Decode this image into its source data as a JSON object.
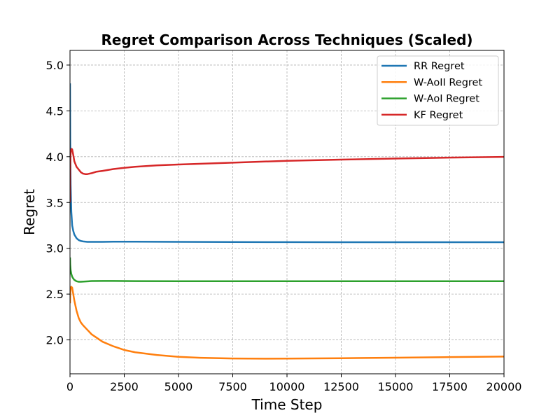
{
  "chart_data": {
    "type": "line",
    "title": "Regret Comparison Across Techniques (Scaled)",
    "xlabel": "Time Step",
    "ylabel": "Regret",
    "xlim": [
      0,
      20000
    ],
    "ylim": [
      1.63,
      5.16
    ],
    "xticks": [
      0,
      2500,
      5000,
      7500,
      10000,
      12500,
      15000,
      17500,
      20000
    ],
    "xtick_labels": [
      "0",
      "2500",
      "5000",
      "7500",
      "10000",
      "12500",
      "15000",
      "17500",
      "20000"
    ],
    "yticks": [
      2.0,
      2.5,
      3.0,
      3.5,
      4.0,
      4.5,
      5.0
    ],
    "ytick_labels": [
      "2.0",
      "2.5",
      "3.0",
      "3.5",
      "4.0",
      "4.5",
      "5.0"
    ],
    "grid": true,
    "legend_position": "top-right",
    "series": [
      {
        "name": "RR Regret",
        "color": "#1f77b4",
        "x": [
          1,
          10,
          30,
          60,
          100,
          150,
          200,
          300,
          400,
          500,
          600,
          800,
          1000,
          1500,
          2000,
          3000,
          5000,
          7500,
          10000,
          12500,
          15000,
          17500,
          20000
        ],
        "y": [
          4.8,
          4.2,
          3.7,
          3.4,
          3.25,
          3.19,
          3.15,
          3.11,
          3.09,
          3.08,
          3.075,
          3.07,
          3.07,
          3.07,
          3.072,
          3.072,
          3.07,
          3.068,
          3.067,
          3.066,
          3.066,
          3.066,
          3.066
        ]
      },
      {
        "name": "W-AoII Regret",
        "color": "#ff7f0e",
        "x": [
          1,
          10,
          30,
          60,
          100,
          150,
          200,
          300,
          400,
          500,
          600,
          800,
          1000,
          1250,
          1500,
          2000,
          2500,
          3000,
          4000,
          5000,
          6000,
          7500,
          9000,
          10000,
          12500,
          15000,
          17500,
          20000
        ],
        "y": [
          2.4,
          2.5,
          2.56,
          2.58,
          2.57,
          2.5,
          2.43,
          2.32,
          2.24,
          2.19,
          2.16,
          2.11,
          2.06,
          2.02,
          1.98,
          1.93,
          1.89,
          1.865,
          1.835,
          1.815,
          1.805,
          1.797,
          1.795,
          1.796,
          1.8,
          1.806,
          1.812,
          1.818
        ]
      },
      {
        "name": "W-AoI Regret",
        "color": "#2ca02c",
        "x": [
          1,
          10,
          30,
          60,
          100,
          150,
          200,
          300,
          400,
          500,
          700,
          1000,
          1500,
          2000,
          3000,
          5000,
          7500,
          10000,
          12500,
          15000,
          17500,
          20000
        ],
        "y": [
          2.9,
          2.82,
          2.76,
          2.72,
          2.69,
          2.67,
          2.655,
          2.64,
          2.635,
          2.635,
          2.638,
          2.642,
          2.643,
          2.643,
          2.641,
          2.64,
          2.64,
          2.64,
          2.64,
          2.64,
          2.64,
          2.64
        ]
      },
      {
        "name": "KF Regret",
        "color": "#d62728",
        "x": [
          1,
          5,
          10,
          20,
          40,
          70,
          100,
          150,
          200,
          300,
          400,
          500,
          600,
          700,
          800,
          1000,
          1200,
          1500,
          2000,
          2500,
          3000,
          4000,
          5000,
          7500,
          10000,
          12500,
          15000,
          17500,
          20000
        ],
        "y": [
          3.5,
          3.75,
          3.9,
          4.0,
          4.06,
          4.085,
          4.08,
          4.02,
          3.95,
          3.89,
          3.86,
          3.83,
          3.815,
          3.81,
          3.81,
          3.82,
          3.835,
          3.845,
          3.865,
          3.878,
          3.89,
          3.905,
          3.915,
          3.935,
          3.955,
          3.968,
          3.98,
          3.99,
          3.998
        ]
      }
    ]
  }
}
